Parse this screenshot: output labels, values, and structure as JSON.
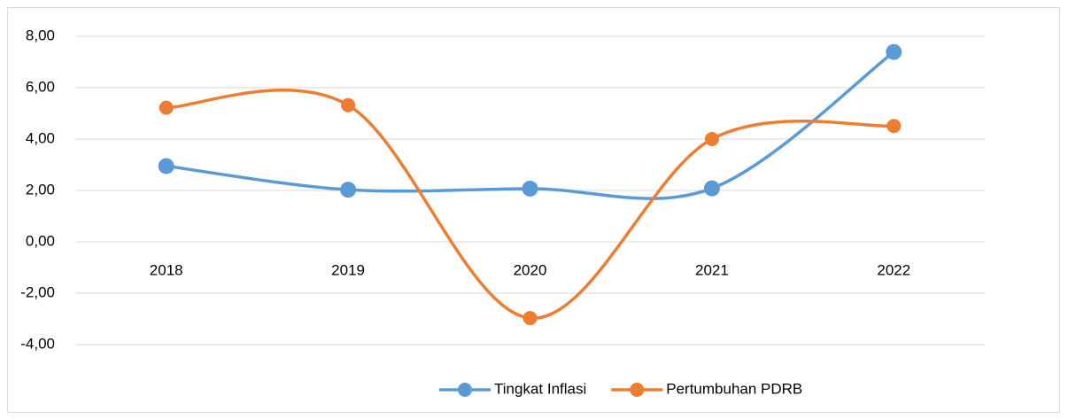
{
  "chart_data": {
    "type": "line",
    "categories": [
      "2018",
      "2019",
      "2020",
      "2021",
      "2022"
    ],
    "series": [
      {
        "name": "Tingkat Inflasi",
        "color": "#5b9bd5",
        "values": [
          2.95,
          2.03,
          2.07,
          2.08,
          7.39
        ]
      },
      {
        "name": "Pertumbuhan PDRB",
        "color": "#ed7d31",
        "values": [
          5.22,
          5.32,
          -2.97,
          4.0,
          4.51
        ]
      }
    ],
    "ylim": [
      -4,
      8
    ],
    "yticks": [
      {
        "value": -4,
        "label": "-4,00"
      },
      {
        "value": -2,
        "label": "-2,00"
      },
      {
        "value": 0,
        "label": "0,00"
      },
      {
        "value": 2,
        "label": "2,00"
      },
      {
        "value": 4,
        "label": "4,00"
      },
      {
        "value": 6,
        "label": "6,00"
      },
      {
        "value": 8,
        "label": "8,00"
      }
    ],
    "grid": true,
    "smooth": true,
    "legend": "bottom"
  }
}
